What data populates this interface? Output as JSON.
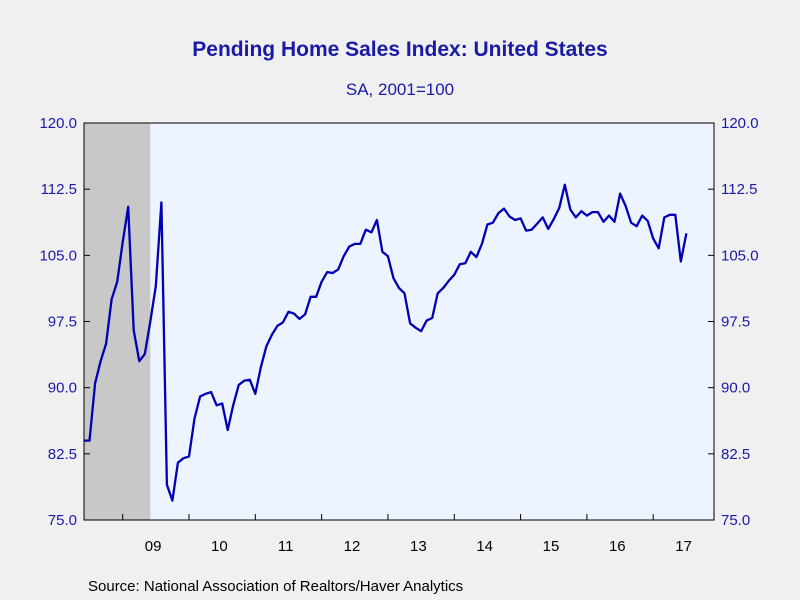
{
  "chart_data": {
    "type": "line",
    "title": "Pending Home Sales Index: United States",
    "subtitle": "SA, 2001=100",
    "source": "Source:  National Association of Realtors/Haver Analytics",
    "ylim": [
      75.0,
      120.0
    ],
    "y_ticks": [
      "120.0",
      "112.5",
      "105.0",
      "97.5",
      "90.0",
      "82.5",
      "75.0"
    ],
    "y_tick_values": [
      120.0,
      112.5,
      105.0,
      97.5,
      90.0,
      82.5,
      75.0
    ],
    "x_tick_labels": [
      "09",
      "10",
      "11",
      "12",
      "13",
      "14",
      "15",
      "16",
      "17"
    ],
    "x_start": "2008-06",
    "x_end": "2017-12",
    "recession_shading": [
      "2008-06",
      "2009-06"
    ],
    "grid": false,
    "colors": {
      "line": "#0000b4",
      "plot_bg": "#eef4ff",
      "recession": "#c8c8c8",
      "text": "#1a1aa6"
    },
    "series": [
      {
        "x_start": "2008-06",
        "values": [
          84,
          84,
          90.5,
          93,
          95,
          100,
          102,
          106.5,
          110.5,
          96.5,
          93,
          93.8,
          97.5,
          101.5,
          111,
          79,
          77.2,
          81.5,
          82,
          82.2,
          86.5,
          89,
          89.3,
          89.5,
          88,
          88.2,
          85.2,
          88,
          90.3,
          90.8,
          90.9,
          89.3,
          92.3,
          94.7,
          96,
          97,
          97.4,
          98.6,
          98.4,
          97.8,
          98.3,
          100.3,
          100.3,
          102,
          103.1,
          103,
          103.4,
          104.9,
          106,
          106.3,
          106.3,
          107.9,
          107.6,
          109,
          105.4,
          104.9,
          102.4,
          101.3,
          100.7,
          97.3,
          96.8,
          96.4,
          97.6,
          97.9,
          100.7,
          101.3,
          102.1,
          102.8,
          104,
          104.1,
          105.4,
          104.8,
          106.3,
          108.5,
          108.7,
          109.8,
          110.3,
          109.4,
          109,
          109.2,
          107.8,
          107.9,
          108.6,
          109.3,
          108,
          109.1,
          110.4,
          113,
          110.2,
          109.3,
          110,
          109.5,
          109.9,
          109.9,
          108.8,
          109.5,
          108.8,
          112,
          110.6,
          108.7,
          108.3,
          109.5,
          108.9,
          106.9,
          105.8,
          109.3,
          109.6,
          109.6,
          104.3,
          107.5
        ]
      }
    ]
  }
}
